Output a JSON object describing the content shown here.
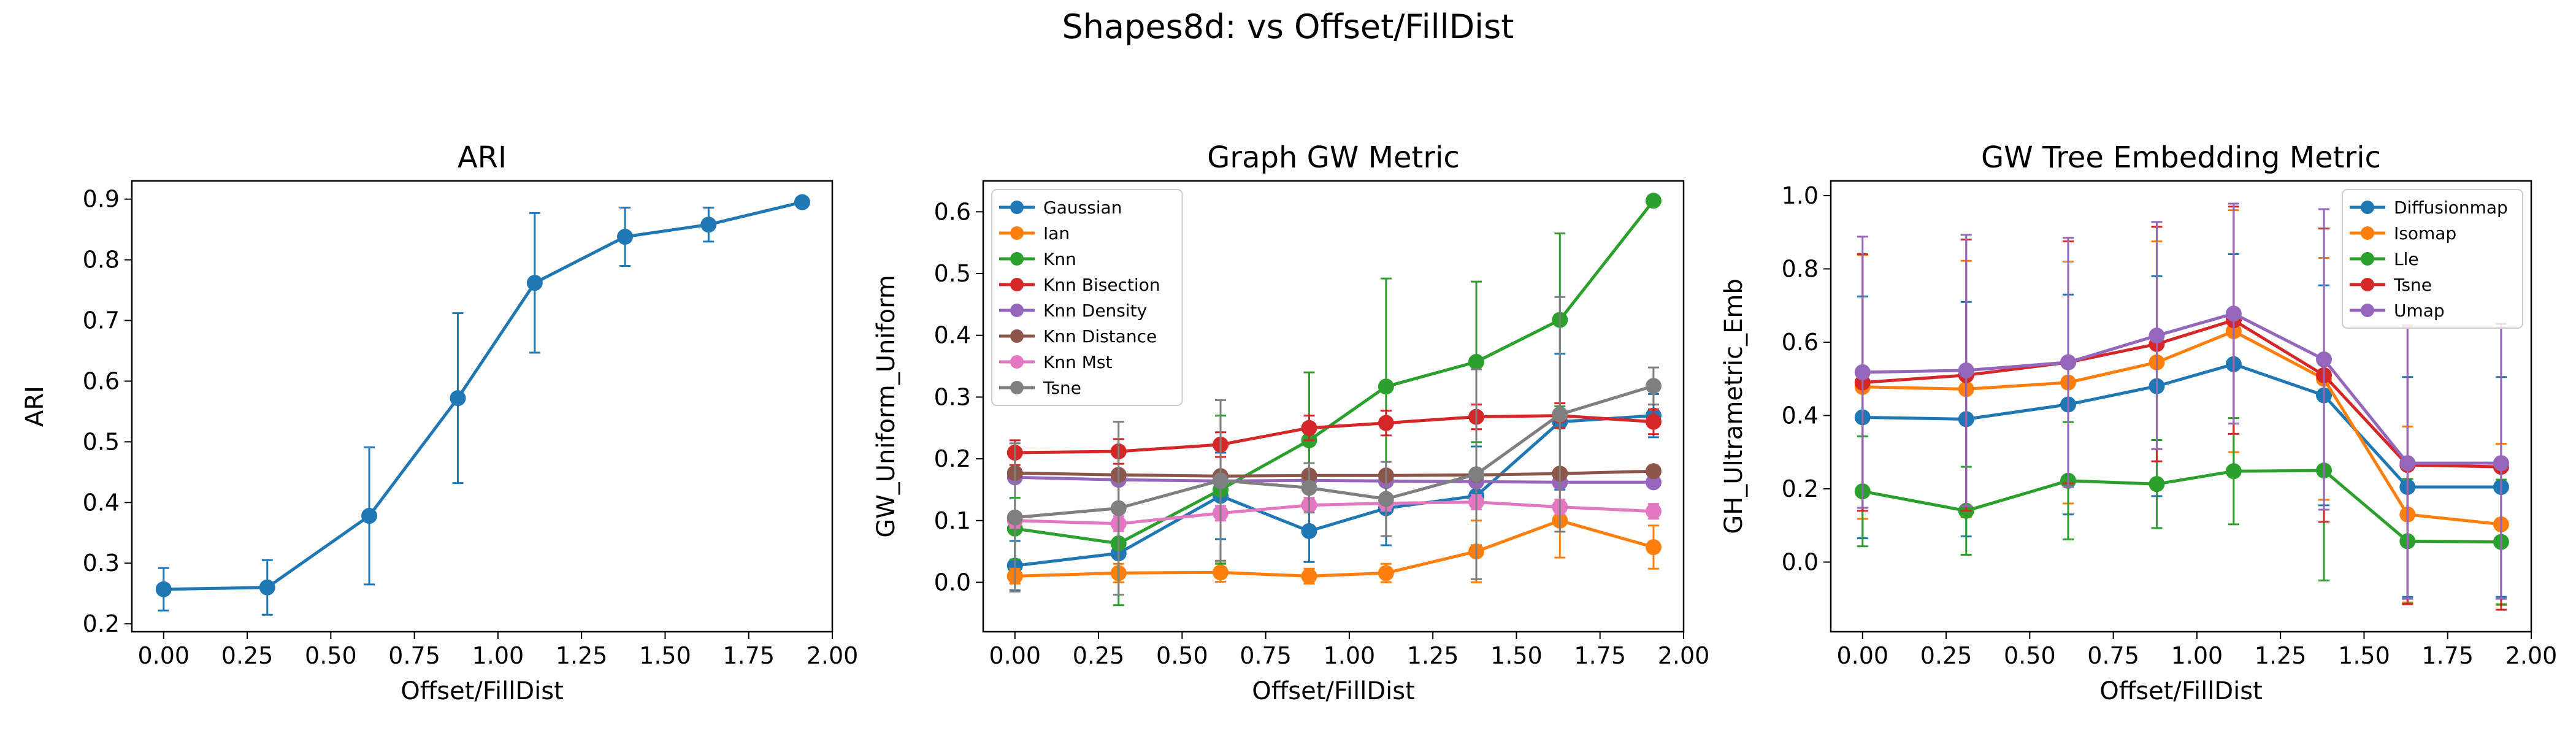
{
  "figure": {
    "suptitle": "Shapes8d: vs Offset/FillDist"
  },
  "colors": {
    "blue": "#1f77b4",
    "orange": "#ff7f0e",
    "green": "#2ca02c",
    "red": "#d62728",
    "purple": "#9467bd",
    "brown": "#8c564b",
    "pink": "#e377c2",
    "gray": "#7f7f7f"
  },
  "chart_data": [
    {
      "type": "line",
      "title": "ARI",
      "xlabel": "Offset/FillDist",
      "ylabel": "ARI",
      "xlim": [
        -0.095,
        2.0
      ],
      "ylim": [
        0.187,
        0.93
      ],
      "xticks": [
        "0.00",
        "0.25",
        "0.50",
        "0.75",
        "1.00",
        "1.25",
        "1.50",
        "1.75",
        "2.00"
      ],
      "yticks": [
        "0.2",
        "0.3",
        "0.4",
        "0.5",
        "0.6",
        "0.7",
        "0.8",
        "0.9"
      ],
      "x": [
        0.0,
        0.31,
        0.615,
        0.88,
        1.11,
        1.38,
        1.63,
        1.91
      ],
      "legend": null,
      "series": [
        {
          "color": "#1f77b4",
          "values": [
            0.257,
            0.26,
            0.378,
            0.572,
            0.762,
            0.838,
            0.858,
            0.895
          ],
          "err": [
            0.035,
            0.045,
            0.113,
            0.14,
            0.115,
            0.048,
            0.028,
            0.008
          ]
        }
      ]
    },
    {
      "type": "line",
      "title": "Graph GW Metric",
      "xlabel": "Offset/FillDist",
      "ylabel": "GW_Uniform_Uniform",
      "xlim": [
        -0.095,
        2.0
      ],
      "ylim": [
        -0.08,
        0.65
      ],
      "xticks": [
        "0.00",
        "0.25",
        "0.50",
        "0.75",
        "1.00",
        "1.25",
        "1.50",
        "1.75",
        "2.00"
      ],
      "yticks": [
        "0.0",
        "0.1",
        "0.2",
        "0.3",
        "0.4",
        "0.5",
        "0.6"
      ],
      "x": [
        0.0,
        0.31,
        0.615,
        0.88,
        1.11,
        1.38,
        1.63,
        1.91
      ],
      "legend": "top-left",
      "series": [
        {
          "name": "Gaussian",
          "color": "#1f77b4",
          "values": [
            0.027,
            0.047,
            0.14,
            0.083,
            0.12,
            0.14,
            0.26,
            0.27
          ],
          "err": [
            0.04,
            0.04,
            0.07,
            0.05,
            0.06,
            0.08,
            0.11,
            0.035
          ]
        },
        {
          "name": "Ian",
          "color": "#ff7f0e",
          "values": [
            0.01,
            0.015,
            0.016,
            0.01,
            0.015,
            0.05,
            0.1,
            0.057
          ],
          "err": [
            0.012,
            0.015,
            0.015,
            0.012,
            0.015,
            0.05,
            0.06,
            0.035
          ]
        },
        {
          "name": "Knn",
          "color": "#2ca02c",
          "values": [
            0.087,
            0.063,
            0.15,
            0.23,
            0.317,
            0.357,
            0.425,
            0.618
          ],
          "err": [
            0.05,
            0.1,
            0.12,
            0.11,
            0.175,
            0.13,
            0.14,
            0.008
          ]
        },
        {
          "name": "Knn Bisection",
          "color": "#d62728",
          "values": [
            0.21,
            0.212,
            0.223,
            0.25,
            0.258,
            0.268,
            0.27,
            0.26
          ],
          "err": [
            0.02,
            0.02,
            0.02,
            0.02,
            0.02,
            0.02,
            0.02,
            0.02
          ]
        },
        {
          "name": "Knn Density",
          "color": "#9467bd",
          "values": [
            0.17,
            0.166,
            0.164,
            0.165,
            0.164,
            0.163,
            0.162,
            0.162
          ],
          "err": [
            0.008,
            0.008,
            0.008,
            0.008,
            0.008,
            0.008,
            0.008,
            0.008
          ]
        },
        {
          "name": "Knn Distance",
          "color": "#8c564b",
          "values": [
            0.177,
            0.174,
            0.172,
            0.173,
            0.173,
            0.174,
            0.176,
            0.18
          ],
          "err": [
            0.008,
            0.008,
            0.008,
            0.008,
            0.008,
            0.008,
            0.008,
            0.008
          ]
        },
        {
          "name": "Knn Mst",
          "color": "#e377c2",
          "values": [
            0.1,
            0.095,
            0.112,
            0.125,
            0.128,
            0.13,
            0.122,
            0.115
          ],
          "err": [
            0.012,
            0.012,
            0.012,
            0.012,
            0.012,
            0.012,
            0.012,
            0.012
          ]
        },
        {
          "name": "Tsne",
          "color": "#7f7f7f",
          "values": [
            0.105,
            0.12,
            0.165,
            0.153,
            0.135,
            0.175,
            0.272,
            0.318
          ],
          "err": [
            0.12,
            0.14,
            0.13,
            0.04,
            0.06,
            0.17,
            0.19,
            0.03
          ]
        }
      ]
    },
    {
      "type": "line",
      "title": "GW Tree Embedding Metric",
      "xlabel": "Offset/FillDist",
      "ylabel": "GH_Ultrametric_Emb",
      "xlim": [
        -0.095,
        2.0
      ],
      "ylim": [
        -0.19,
        1.04
      ],
      "xticks": [
        "0.00",
        "0.25",
        "0.50",
        "0.75",
        "1.00",
        "1.25",
        "1.50",
        "1.75",
        "2.00"
      ],
      "yticks": [
        "0.0",
        "0.2",
        "0.4",
        "0.6",
        "0.8",
        "1.0"
      ],
      "x": [
        0.0,
        0.31,
        0.615,
        0.88,
        1.11,
        1.38,
        1.63,
        1.91
      ],
      "legend": "top-right",
      "series": [
        {
          "name": "Diffusionmap",
          "color": "#1f77b4",
          "values": [
            0.395,
            0.39,
            0.43,
            0.48,
            0.54,
            0.455,
            0.205,
            0.205
          ],
          "err": [
            0.33,
            0.32,
            0.3,
            0.3,
            0.3,
            0.3,
            0.3,
            0.3
          ]
        },
        {
          "name": "Isomap",
          "color": "#ff7f0e",
          "values": [
            0.478,
            0.472,
            0.49,
            0.545,
            0.63,
            0.5,
            0.13,
            0.103
          ],
          "err": [
            0.36,
            0.35,
            0.33,
            0.33,
            0.33,
            0.33,
            0.24,
            0.22
          ]
        },
        {
          "name": "Lle",
          "color": "#2ca02c",
          "values": [
            0.193,
            0.14,
            0.222,
            0.213,
            0.248,
            0.25,
            0.057,
            0.055
          ],
          "err": [
            0.15,
            0.12,
            0.16,
            0.12,
            0.145,
            0.3,
            0.17,
            0.17
          ]
        },
        {
          "name": "Tsne",
          "color": "#d62728",
          "values": [
            0.49,
            0.51,
            0.545,
            0.595,
            0.66,
            0.51,
            0.265,
            0.26
          ],
          "err": [
            0.35,
            0.37,
            0.33,
            0.32,
            0.31,
            0.4,
            0.38,
            0.39
          ]
        },
        {
          "name": "Umap",
          "color": "#9467bd",
          "values": [
            0.518,
            0.523,
            0.545,
            0.618,
            0.678,
            0.553,
            0.27,
            0.27
          ],
          "err": [
            0.37,
            0.37,
            0.34,
            0.31,
            0.3,
            0.41,
            0.37,
            0.37
          ]
        }
      ]
    }
  ]
}
